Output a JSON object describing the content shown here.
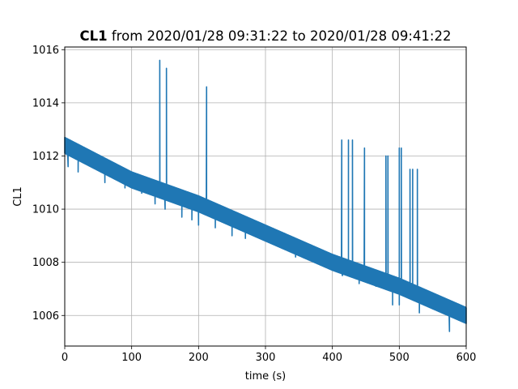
{
  "chart_data": {
    "type": "line",
    "title_bold": "CL1",
    "title_rest": " from 2020/01/28 09:31:22 to 2020/01/28 09:41:22",
    "xlabel": "time (s)",
    "ylabel": "CL1",
    "xlim": [
      0,
      600
    ],
    "ylim": [
      1004.85,
      1016.1
    ],
    "xticks": [
      0,
      100,
      200,
      300,
      400,
      500,
      600
    ],
    "xtick_labels": [
      "0",
      "100",
      "200",
      "300",
      "400",
      "500",
      "600"
    ],
    "yticks": [
      1006,
      1008,
      1010,
      1012,
      1014,
      1016
    ],
    "ytick_labels": [
      "1006",
      "1008",
      "1010",
      "1012",
      "1014",
      "1016"
    ],
    "grid": true,
    "color": "#1f77b4",
    "series": [
      {
        "trend": [
          [
            0,
            12.4
          ],
          [
            100,
            11.1
          ],
          [
            200,
            10.2
          ],
          [
            300,
            9.1
          ],
          [
            400,
            8.0
          ],
          [
            500,
            7.1
          ],
          [
            600,
            6.0
          ]
        ],
        "band_half_width": 0.3,
        "dips": [
          [
            5,
            11.6
          ],
          [
            20,
            11.4
          ],
          [
            60,
            11.0
          ],
          [
            90,
            10.8
          ],
          [
            115,
            10.6
          ],
          [
            135,
            10.2
          ],
          [
            150,
            10.0
          ],
          [
            175,
            9.7
          ],
          [
            190,
            9.6
          ],
          [
            200,
            9.4
          ],
          [
            225,
            9.3
          ],
          [
            250,
            9.0
          ],
          [
            270,
            8.9
          ],
          [
            300,
            8.9
          ],
          [
            320,
            8.6
          ],
          [
            345,
            8.2
          ],
          [
            370,
            8.1
          ],
          [
            390,
            7.9
          ],
          [
            415,
            7.5
          ],
          [
            440,
            7.2
          ],
          [
            465,
            7.1
          ],
          [
            490,
            6.4
          ],
          [
            500,
            6.4
          ],
          [
            530,
            6.1
          ],
          [
            575,
            5.4
          ]
        ],
        "spikes": [
          [
            142,
            15.6
          ],
          [
            152,
            15.3
          ],
          [
            212,
            14.6
          ],
          [
            414,
            12.6
          ],
          [
            424,
            12.6
          ],
          [
            430,
            12.6
          ],
          [
            448,
            12.3
          ],
          [
            480,
            12.0
          ],
          [
            483,
            12.0
          ],
          [
            500,
            12.3
          ],
          [
            503,
            12.3
          ],
          [
            516,
            11.5
          ],
          [
            520,
            11.5
          ],
          [
            527,
            11.5
          ]
        ]
      }
    ]
  }
}
